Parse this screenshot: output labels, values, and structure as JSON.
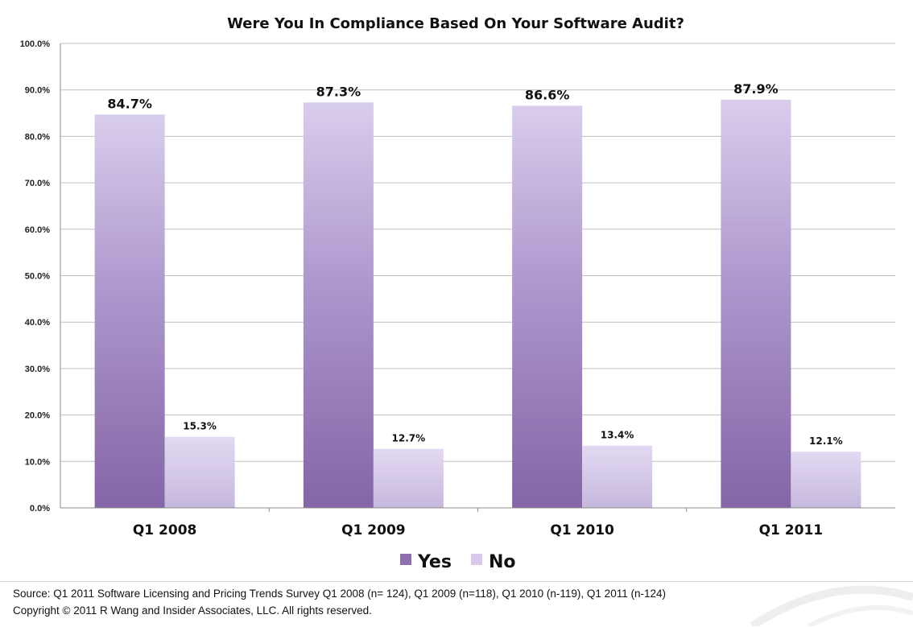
{
  "chart_data": {
    "type": "bar",
    "title": "Were You In Compliance Based On Your Software Audit?",
    "categories": [
      "Q1 2008",
      "Q1 2009",
      "Q1 2010",
      "Q1 2011"
    ],
    "series": [
      {
        "name": "Yes",
        "values": [
          84.7,
          87.3,
          86.6,
          87.9
        ],
        "labels": [
          "84.7%",
          "87.3%",
          "86.6%",
          "87.9%"
        ],
        "color": "#8f6fb0"
      },
      {
        "name": "No",
        "values": [
          15.3,
          12.7,
          13.4,
          12.1
        ],
        "labels": [
          "15.3%",
          "12.7%",
          "13.4%",
          "12.1%"
        ],
        "color": "#d6c9ea"
      }
    ],
    "ylim": [
      0,
      100
    ],
    "yticks": [
      "0.0%",
      "10.0%",
      "20.0%",
      "30.0%",
      "40.0%",
      "50.0%",
      "60.0%",
      "70.0%",
      "80.0%",
      "90.0%",
      "100.0%"
    ],
    "xlabel": "",
    "ylabel": "",
    "grid": true,
    "legend_position": "bottom-center"
  },
  "footer": {
    "source": "Source: Q1 2011 Software Licensing and Pricing Trends Survey Q1 2008 (n= 124), Q1 2009 (n=118), Q1 2010 (n-119), Q1 2011 (n-124)",
    "copyright": "Copyright © 2011 R Wang and Insider Associates, LLC. All rights reserved."
  }
}
